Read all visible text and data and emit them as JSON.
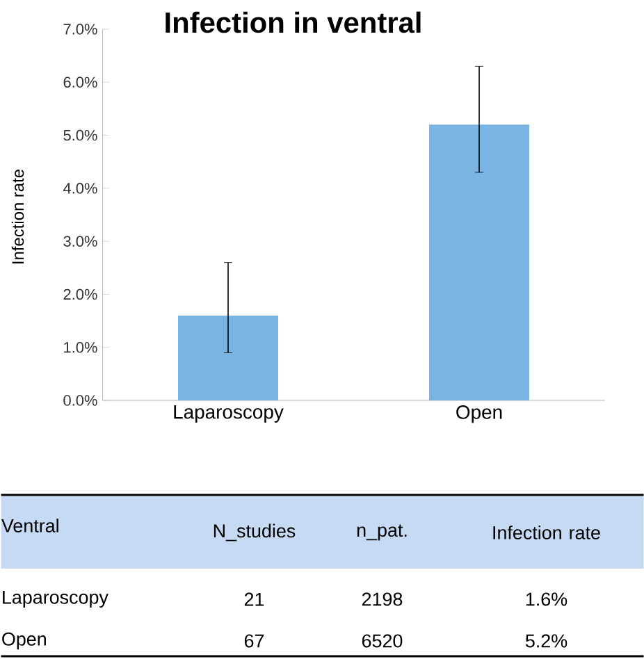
{
  "chart_data": {
    "type": "bar",
    "title": "Infection in ventral",
    "ylabel": "Infection rate",
    "categories": [
      "Laparoscopy",
      "Open"
    ],
    "series": [
      {
        "color": "#7ab4e2",
        "values": [
          1.6,
          5.2
        ],
        "errors": [
          [
            0.9,
            2.6
          ],
          [
            4.3,
            6.3
          ]
        ]
      }
    ],
    "ylim": [
      0,
      7
    ],
    "yticks": [
      {
        "value": 0,
        "label": "0.0%"
      },
      {
        "value": 1,
        "label": "1.0%"
      },
      {
        "value": 2,
        "label": "2.0%"
      },
      {
        "value": 3,
        "label": "3.0%"
      },
      {
        "value": 4,
        "label": "4.0%"
      },
      {
        "value": 5,
        "label": "5.0%"
      },
      {
        "value": 6,
        "label": "6.0%"
      },
      {
        "value": 7,
        "label": "7.0%"
      }
    ],
    "grid": false,
    "annotations": [
      "Ventral",
      "N_studies",
      "n_pat.",
      "Infection rate",
      "Laparoscopy",
      "21",
      "2198",
      "1.6%",
      "Open",
      "67",
      "6520",
      "5.2%"
    ]
  }
}
